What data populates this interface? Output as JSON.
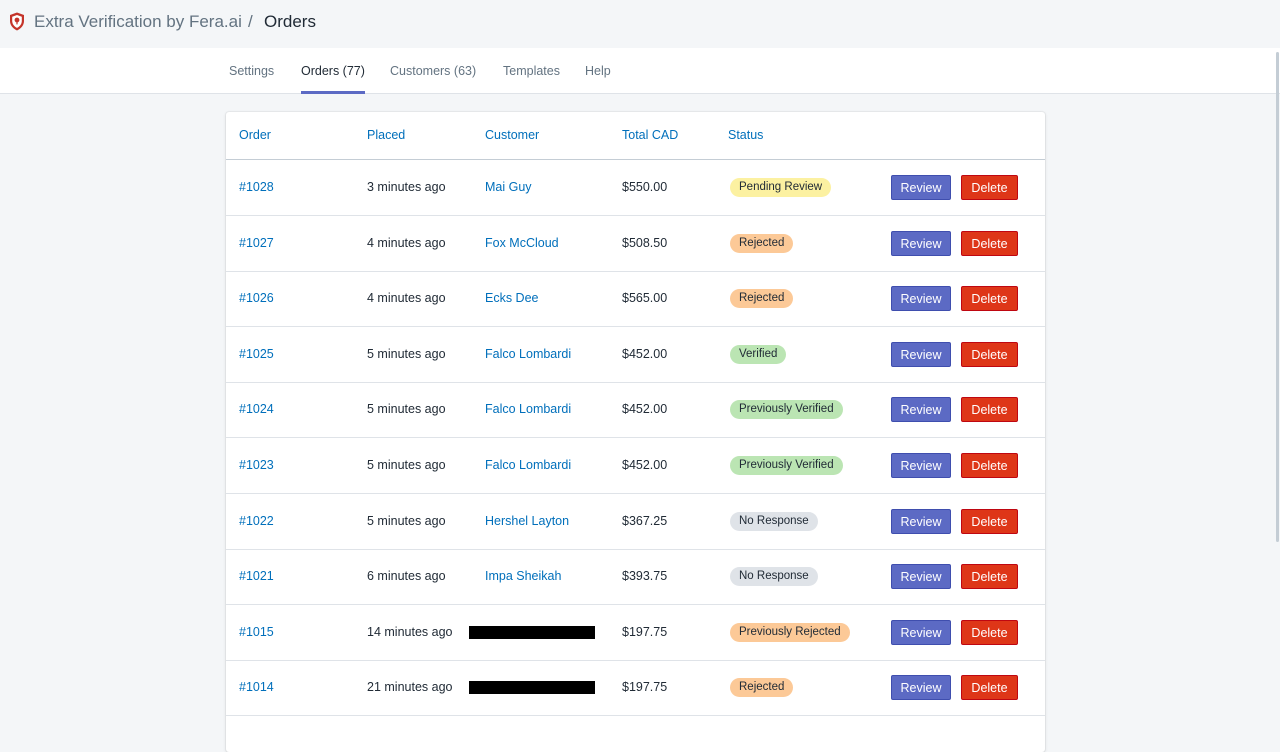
{
  "header": {
    "app_name": "Extra Verification by Fera.ai",
    "separator": "/",
    "page_title": "Orders",
    "logo_icon": "shield-icon"
  },
  "tabs": [
    {
      "label": "Settings",
      "active": false
    },
    {
      "label": "Orders (77)",
      "active": true
    },
    {
      "label": "Customers (63)",
      "active": false
    },
    {
      "label": "Templates",
      "active": false
    },
    {
      "label": "Help",
      "active": false
    }
  ],
  "table": {
    "columns": [
      "Order",
      "Placed",
      "Customer",
      "Total CAD",
      "Status"
    ],
    "review_label": "Review",
    "delete_label": "Delete",
    "rows": [
      {
        "order": "#1028",
        "placed": "3 minutes ago",
        "customer": "Mai Guy",
        "total": "$550.00",
        "status": "Pending Review",
        "status_kind": "pending",
        "redacted": false
      },
      {
        "order": "#1027",
        "placed": "4 minutes ago",
        "customer": "Fox McCloud",
        "total": "$508.50",
        "status": "Rejected",
        "status_kind": "rejected",
        "redacted": false
      },
      {
        "order": "#1026",
        "placed": "4 minutes ago",
        "customer": "Ecks Dee",
        "total": "$565.00",
        "status": "Rejected",
        "status_kind": "rejected",
        "redacted": false
      },
      {
        "order": "#1025",
        "placed": "5 minutes ago",
        "customer": "Falco Lombardi",
        "total": "$452.00",
        "status": "Verified",
        "status_kind": "verified",
        "redacted": false
      },
      {
        "order": "#1024",
        "placed": "5 minutes ago",
        "customer": "Falco Lombardi",
        "total": "$452.00",
        "status": "Previously Verified",
        "status_kind": "verified",
        "redacted": false
      },
      {
        "order": "#1023",
        "placed": "5 minutes ago",
        "customer": "Falco Lombardi",
        "total": "$452.00",
        "status": "Previously Verified",
        "status_kind": "verified",
        "redacted": false
      },
      {
        "order": "#1022",
        "placed": "5 minutes ago",
        "customer": "Hershel Layton",
        "total": "$367.25",
        "status": "No Response",
        "status_kind": "noresp",
        "redacted": false
      },
      {
        "order": "#1021",
        "placed": "6 minutes ago",
        "customer": "Impa Sheikah",
        "total": "$393.75",
        "status": "No Response",
        "status_kind": "noresp",
        "redacted": false
      },
      {
        "order": "#1015",
        "placed": "14 minutes ago",
        "customer": "",
        "total": "$197.75",
        "status": "Previously Rejected",
        "status_kind": "rejected",
        "redacted": true
      },
      {
        "order": "#1014",
        "placed": "21 minutes ago",
        "customer": "",
        "total": "$197.75",
        "status": "Rejected",
        "status_kind": "rejected",
        "redacted": true
      }
    ]
  },
  "colors": {
    "accent": "#5c6ac4",
    "danger": "#de3618",
    "link": "#006fbb",
    "badge_pending": "#fcf1a1",
    "badge_rejected": "#fcc997",
    "badge_verified": "#bbe5b3",
    "badge_noresp": "#dfe3e8"
  }
}
